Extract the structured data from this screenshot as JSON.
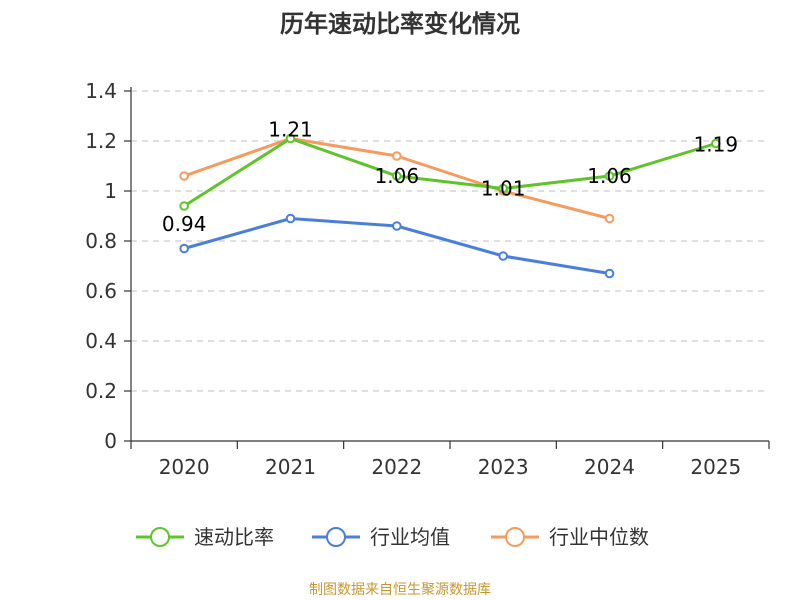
{
  "chart_data": {
    "type": "line",
    "title": "历年速动比率变化情况",
    "categories": [
      "2020",
      "2021",
      "2022",
      "2023",
      "2024",
      "2025"
    ],
    "ylim": [
      0,
      1.4
    ],
    "yticks": [
      "0",
      "0.2",
      "0.4",
      "0.6",
      "0.8",
      "1",
      "1.2",
      "1.4"
    ],
    "series": [
      {
        "name": "速动比率",
        "color": "#5ec42a",
        "values": [
          0.94,
          1.21,
          1.06,
          1.01,
          1.06,
          1.19
        ],
        "labels": [
          "0.94",
          "1.21",
          "1.06",
          "1.01",
          "1.06",
          "1.19"
        ]
      },
      {
        "name": "行业均值",
        "color": "#4a7fd9",
        "values": [
          0.77,
          0.89,
          0.86,
          0.74,
          0.67,
          null
        ]
      },
      {
        "name": "行业中位数",
        "color": "#f79a5e",
        "values": [
          1.06,
          1.21,
          1.14,
          1.0,
          0.89,
          null
        ]
      }
    ],
    "source": "制图数据来自恒生聚源数据库"
  }
}
